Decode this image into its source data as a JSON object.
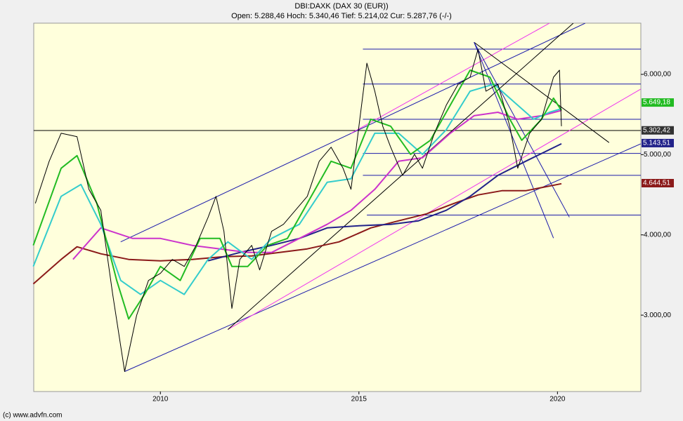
{
  "chart_data": {
    "type": "line",
    "title": "DBI:DAXK (DAX 30 (EUR))",
    "subtitle": "Open: 5.288,46 Hoch: 5.340,46 Tief: 5.214,02 Cur: 5.287,76 (-/-)",
    "footer": "(c) www.advfn.com",
    "xlim": [
      2006.81,
      2022.1
    ],
    "xticks": [
      2010,
      2015,
      2020
    ],
    "ylim": [
      2048,
      6638
    ],
    "yticks": [
      {
        "value": 3000,
        "label": "3.000,00"
      },
      {
        "value": 4000,
        "label": "4.000,00"
      },
      {
        "value": 5000,
        "label": "5.000,00"
      },
      {
        "value": 6000,
        "label": "6.000,00"
      }
    ],
    "grid": false,
    "series": [
      {
        "color": "#000000",
        "width": 1,
        "x": [
          2006.85,
          2007.2,
          2007.5,
          2007.9,
          2008.2,
          2008.5,
          2008.8,
          2009.1,
          2009.4,
          2009.7,
          2010.0,
          2010.3,
          2010.6,
          2010.9,
          2011.2,
          2011.4,
          2011.6,
          2011.8,
          2012.0,
          2012.3,
          2012.5,
          2012.8,
          2013.1,
          2013.4,
          2013.7,
          2014.0,
          2014.3,
          2014.6,
          2014.8,
          2015.0,
          2015.2,
          2015.4,
          2015.6,
          2015.8,
          2016.1,
          2016.4,
          2016.6,
          2016.9,
          2017.2,
          2017.5,
          2017.8,
          2018.0,
          2018.2,
          2018.5,
          2018.8,
          2019.0,
          2019.3,
          2019.6,
          2019.9,
          2020.05,
          2020.1
        ],
        "values": [
          4393,
          4917,
          5266,
          5223,
          4568,
          4306,
          3258,
          2297,
          2996,
          3432,
          3520,
          3694,
          3607,
          3869,
          4218,
          4480,
          4044,
          3083,
          3694,
          3869,
          3563,
          4044,
          4131,
          4306,
          4480,
          4917,
          5092,
          4830,
          4568,
          5354,
          6140,
          5790,
          5354,
          5092,
          4742,
          5004,
          4830,
          5266,
          5616,
          5878,
          5965,
          6314,
          5790,
          5878,
          5354,
          4830,
          5266,
          5441,
          5965,
          6052,
          5354
        ]
      },
      {
        "color": "#22bb22",
        "width": 2,
        "x": [
          2006.8,
          2007.5,
          2007.9,
          2008.4,
          2008.9,
          2009.2,
          2009.6,
          2010.0,
          2010.5,
          2011.0,
          2011.5,
          2011.8,
          2012.2,
          2012.7,
          2013.2,
          2013.7,
          2014.3,
          2014.8,
          2015.3,
          2015.8,
          2016.3,
          2016.8,
          2017.3,
          2017.8,
          2018.3,
          2018.8,
          2019.1,
          2019.6,
          2019.9,
          2020.1
        ],
        "values": [
          3869,
          4830,
          4987,
          4393,
          3432,
          2952,
          3258,
          3607,
          3432,
          3956,
          3956,
          3607,
          3607,
          3869,
          3956,
          4393,
          4917,
          4830,
          5441,
          5354,
          5004,
          5179,
          5616,
          6052,
          5965,
          5441,
          5179,
          5441,
          5703,
          5550
        ]
      },
      {
        "color": "#33cccc",
        "width": 2,
        "x": [
          2006.8,
          2007.5,
          2008.0,
          2008.5,
          2009.0,
          2009.5,
          2010.0,
          2010.6,
          2011.2,
          2011.7,
          2012.3,
          2012.8,
          2013.5,
          2014.2,
          2014.8,
          2015.4,
          2016.0,
          2016.6,
          2017.2,
          2017.8,
          2018.4,
          2018.9,
          2019.4,
          2019.8,
          2020.1
        ],
        "values": [
          3607,
          4480,
          4628,
          4131,
          3432,
          3258,
          3432,
          3258,
          3694,
          3913,
          3694,
          3956,
          4131,
          4655,
          4699,
          5266,
          5266,
          5004,
          5310,
          5790,
          5878,
          5659,
          5441,
          5528,
          5572
        ]
      },
      {
        "color": "#cc33cc",
        "width": 2,
        "x": [
          2007.8,
          2008.5,
          2009.3,
          2010.0,
          2010.8,
          2011.5,
          2012.2,
          2012.8,
          2013.5,
          2014.2,
          2014.8,
          2015.4,
          2016.0,
          2016.6,
          2017.3,
          2017.9,
          2018.5,
          2019.0,
          2019.6,
          2020.1
        ],
        "values": [
          3694,
          4087,
          3956,
          3956,
          3869,
          3825,
          3781,
          3781,
          3956,
          4131,
          4306,
          4568,
          4917,
          4960,
          5266,
          5485,
          5528,
          5441,
          5485,
          5550
        ]
      },
      {
        "color": "#22228a",
        "width": 2,
        "x": [
          2011.2,
          2012.0,
          2012.8,
          2013.5,
          2014.2,
          2015.0,
          2015.8,
          2016.5,
          2017.2,
          2017.8,
          2018.5,
          2019.2,
          2020.1
        ],
        "values": [
          3677,
          3781,
          3869,
          3956,
          4087,
          4113,
          4131,
          4175,
          4306,
          4480,
          4742,
          4917,
          5135
        ]
      },
      {
        "color": "#8b1a1a",
        "width": 2,
        "x": [
          2006.8,
          2007.5,
          2007.9,
          2008.5,
          2009.2,
          2010.0,
          2010.8,
          2011.6,
          2012.3,
          2013.0,
          2013.7,
          2014.5,
          2015.3,
          2016.0,
          2016.7,
          2017.4,
          2018.0,
          2018.6,
          2019.2,
          2020.1
        ],
        "values": [
          3389,
          3694,
          3852,
          3764,
          3694,
          3677,
          3694,
          3729,
          3738,
          3781,
          3825,
          3913,
          4087,
          4175,
          4262,
          4393,
          4498,
          4550,
          4550,
          4638
        ]
      }
    ],
    "trendlines": [
      {
        "color": "#1a1aaa",
        "x": [
          2015.1,
          2022.1
        ],
        "y": [
          6314,
          6314
        ]
      },
      {
        "color": "#1a1aaa",
        "x": [
          2015.1,
          2022.1
        ],
        "y": [
          5880,
          5880
        ]
      },
      {
        "color": "#1a1aaa",
        "x": [
          2015.1,
          2022.1
        ],
        "y": [
          5440,
          5440
        ]
      },
      {
        "color": "#000000",
        "x": [
          2006.81,
          2022.1
        ],
        "y": [
          5300,
          5300
        ]
      },
      {
        "color": "#1a1aaa",
        "x": [
          2015.1,
          2022.1
        ],
        "y": [
          5015,
          5015
        ]
      },
      {
        "color": "#1a1aaa",
        "x": [
          2015.1,
          2022.1
        ],
        "y": [
          4742,
          4742
        ]
      },
      {
        "color": "#1a1aaa",
        "x": [
          2015.2,
          2022.1
        ],
        "y": [
          4247,
          4247
        ]
      },
      {
        "color": "#1a1aaa",
        "x": [
          2009.1,
          2022.1
        ],
        "y": [
          2297,
          5135
        ]
      },
      {
        "color": "#1a1aaa",
        "x": [
          2009.0,
          2020.7
        ],
        "y": [
          3913,
          6638
        ]
      },
      {
        "color": "#ee33ee",
        "x": [
          2014.8,
          2019.8
        ],
        "y": [
          5266,
          6638
        ]
      },
      {
        "color": "#ee33ee",
        "x": [
          2011.7,
          2022.1
        ],
        "y": [
          2821,
          5817
        ]
      },
      {
        "color": "#000000",
        "x": [
          2011.7,
          2020.4
        ],
        "y": [
          2821,
          6638
        ]
      },
      {
        "color": "#000000",
        "x": [
          2017.9,
          2021.3
        ],
        "y": [
          6400,
          5150
        ]
      },
      {
        "color": "#1a1aaa",
        "x": [
          2017.9,
          2020.3
        ],
        "y": [
          6400,
          4220
        ]
      },
      {
        "color": "#1a1aaa",
        "x": [
          2017.9,
          2019.9
        ],
        "y": [
          6400,
          3960
        ]
      }
    ],
    "price_labels": [
      {
        "value": 5649.18,
        "label": "5.649,18",
        "color": "#22bb22"
      },
      {
        "value": 5302.42,
        "label": "5.302,42",
        "color": "#333333"
      },
      {
        "value": 5143.51,
        "label": "5.143,51",
        "color": "#22228a"
      },
      {
        "value": 4644.51,
        "label": "4.644,51",
        "color": "#8b1a1a"
      }
    ]
  }
}
